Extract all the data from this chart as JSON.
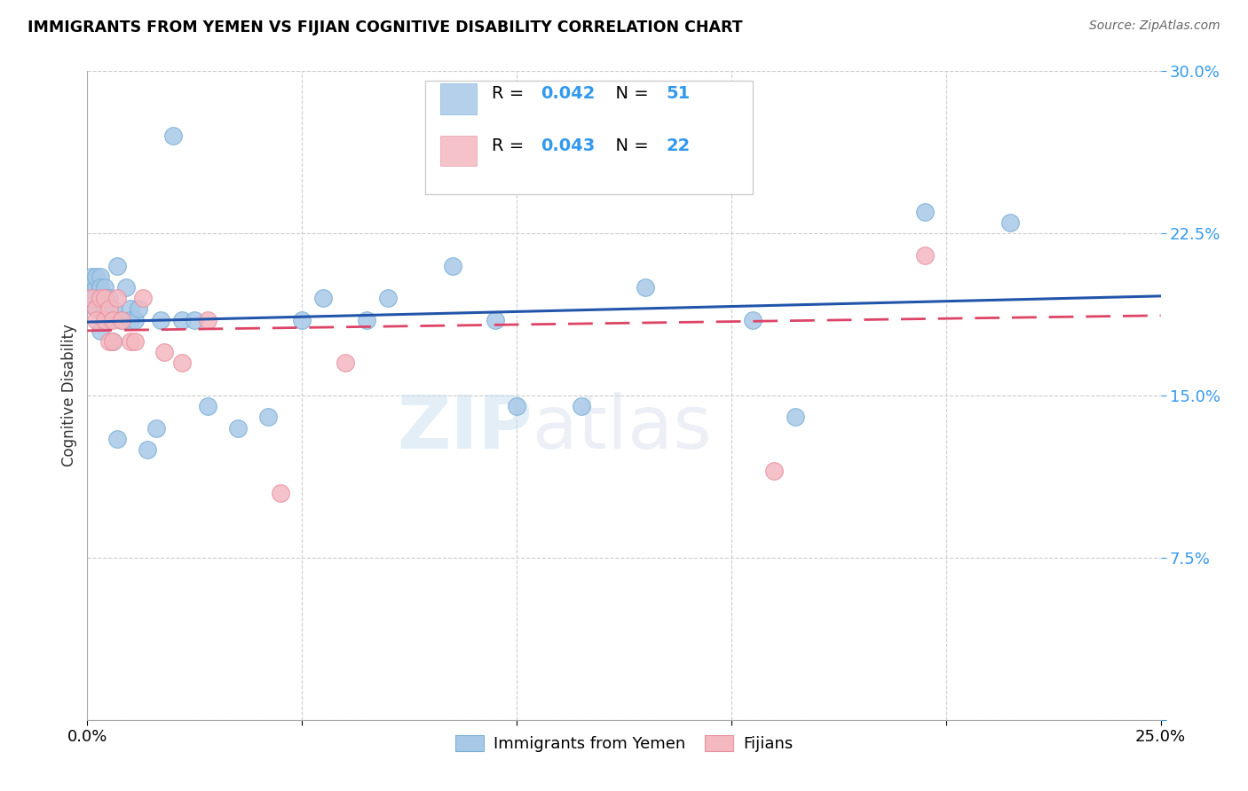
{
  "title": "IMMIGRANTS FROM YEMEN VS FIJIAN COGNITIVE DISABILITY CORRELATION CHART",
  "source": "Source: ZipAtlas.com",
  "ylabel": "Cognitive Disability",
  "xlim": [
    0.0,
    0.25
  ],
  "ylim": [
    0.0,
    0.3
  ],
  "xticks": [
    0.0,
    0.05,
    0.1,
    0.15,
    0.2,
    0.25
  ],
  "yticks": [
    0.0,
    0.075,
    0.15,
    0.225,
    0.3
  ],
  "xticklabels": [
    "0.0%",
    "",
    "",
    "",
    "",
    "25.0%"
  ],
  "yticklabels": [
    "",
    "7.5%",
    "15.0%",
    "22.5%",
    "30.0%"
  ],
  "legend1_r": "R = 0.042",
  "legend1_n": "N = 51",
  "legend2_r": "R = 0.043",
  "legend2_n": "N = 22",
  "blue_color": "#a8c8e8",
  "pink_color": "#f4b8c0",
  "blue_edge_color": "#7aafd4",
  "pink_edge_color": "#e890a0",
  "blue_line_color": "#2255aa",
  "pink_line_color": "#dd4466",
  "blue_x": [
    0.001,
    0.001,
    0.001,
    0.002,
    0.002,
    0.002,
    0.002,
    0.003,
    0.003,
    0.003,
    0.003,
    0.003,
    0.004,
    0.004,
    0.004,
    0.004,
    0.004,
    0.005,
    0.005,
    0.006,
    0.006,
    0.007,
    0.007,
    0.008,
    0.009,
    0.01,
    0.01,
    0.011,
    0.012,
    0.014,
    0.016,
    0.017,
    0.02,
    0.022,
    0.025,
    0.028,
    0.035,
    0.042,
    0.05,
    0.055,
    0.065,
    0.07,
    0.085,
    0.095,
    0.1,
    0.115,
    0.13,
    0.155,
    0.165,
    0.195,
    0.215
  ],
  "blue_y": [
    0.2,
    0.205,
    0.195,
    0.2,
    0.195,
    0.205,
    0.19,
    0.205,
    0.195,
    0.19,
    0.2,
    0.18,
    0.195,
    0.185,
    0.195,
    0.2,
    0.19,
    0.185,
    0.195,
    0.19,
    0.175,
    0.13,
    0.21,
    0.185,
    0.2,
    0.19,
    0.185,
    0.185,
    0.19,
    0.125,
    0.135,
    0.185,
    0.27,
    0.185,
    0.185,
    0.145,
    0.135,
    0.14,
    0.185,
    0.195,
    0.185,
    0.195,
    0.21,
    0.185,
    0.145,
    0.145,
    0.2,
    0.185,
    0.14,
    0.235,
    0.23
  ],
  "pink_x": [
    0.001,
    0.002,
    0.002,
    0.003,
    0.004,
    0.004,
    0.005,
    0.005,
    0.006,
    0.006,
    0.007,
    0.008,
    0.01,
    0.011,
    0.013,
    0.018,
    0.022,
    0.028,
    0.045,
    0.06,
    0.16,
    0.195
  ],
  "pink_y": [
    0.195,
    0.19,
    0.185,
    0.195,
    0.195,
    0.185,
    0.19,
    0.175,
    0.175,
    0.185,
    0.195,
    0.185,
    0.175,
    0.175,
    0.195,
    0.17,
    0.165,
    0.185,
    0.105,
    0.165,
    0.115,
    0.215
  ],
  "watermark_zip": "ZIP",
  "watermark_atlas": "atlas",
  "legend_labels": [
    "Immigrants from Yemen",
    "Fijians"
  ],
  "blue_trendline": [
    0.184,
    0.196
  ],
  "pink_trendline": [
    0.18,
    0.187
  ]
}
